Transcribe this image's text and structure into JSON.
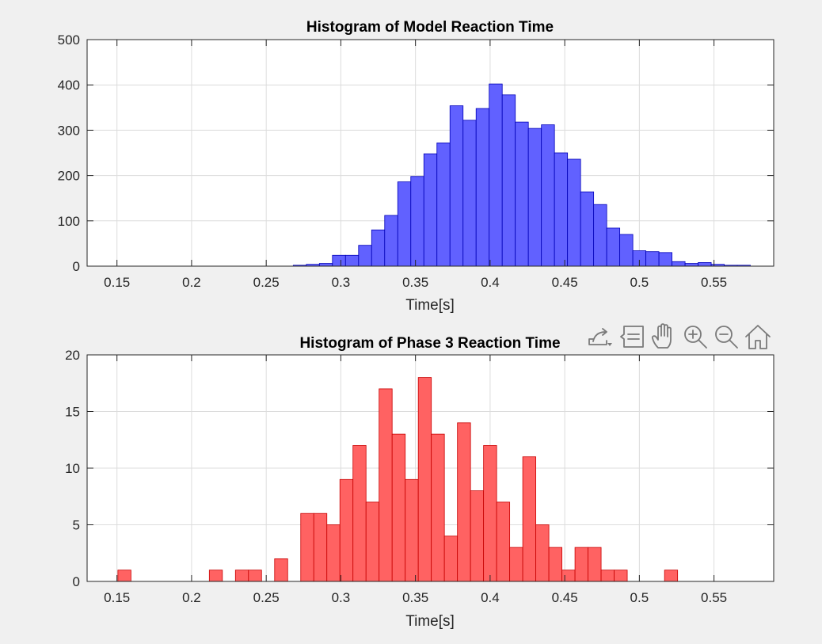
{
  "chart_data": [
    {
      "type": "bar",
      "title": "Histogram of Model Reaction Time",
      "xlabel": "Time[s]",
      "ylabel": "",
      "xlim": [
        0.13,
        0.59
      ],
      "ylim": [
        0,
        500
      ],
      "bin_width": 0.00875,
      "x_ticks": [
        0.15,
        0.2,
        0.25,
        0.3,
        0.35,
        0.4,
        0.45,
        0.5,
        0.55
      ],
      "x_tick_labels": [
        "0.15",
        "0.2",
        "0.25",
        "0.3",
        "0.35",
        "0.4",
        "0.45",
        "0.5",
        "0.55"
      ],
      "y_ticks": [
        0,
        100,
        200,
        300,
        400,
        500
      ],
      "y_tick_labels": [
        "0",
        "100",
        "200",
        "300",
        "400",
        "500"
      ],
      "grid": true,
      "series": [
        {
          "color": "#0000ff",
          "x": [
            0.15,
            0.15875,
            0.1675,
            0.17625,
            0.185,
            0.19375,
            0.2025,
            0.21125,
            0.22,
            0.22875,
            0.2375,
            0.24625,
            0.255,
            0.26375,
            0.2725,
            0.28125,
            0.29,
            0.29875,
            0.3075,
            0.31625,
            0.325,
            0.33375,
            0.3425,
            0.35125,
            0.36,
            0.36875,
            0.3775,
            0.38625,
            0.395,
            0.40375,
            0.4125,
            0.42125,
            0.43,
            0.43875,
            0.4475,
            0.45625,
            0.465,
            0.47375,
            0.4825,
            0.49125,
            0.5,
            0.50875,
            0.5175,
            0.52625,
            0.535,
            0.54375,
            0.5525,
            0.56125,
            0.57
          ],
          "values": [
            0,
            0,
            0,
            0,
            0,
            0,
            0,
            0,
            0,
            0,
            0,
            0,
            0,
            0,
            2,
            4,
            6,
            24,
            24,
            46,
            80,
            112,
            186,
            198,
            248,
            272,
            354,
            322,
            348,
            402,
            378,
            318,
            304,
            312,
            250,
            236,
            164,
            136,
            84,
            70,
            34,
            32,
            30,
            10,
            6,
            8,
            4,
            2,
            2
          ]
        }
      ]
    },
    {
      "type": "bar",
      "title": "Histogram of Phase 3 Reaction Time",
      "xlabel": "Time[s]",
      "ylabel": "",
      "xlim": [
        0.13,
        0.59
      ],
      "ylim": [
        0,
        20
      ],
      "bin_width": 0.00875,
      "x_ticks": [
        0.15,
        0.2,
        0.25,
        0.3,
        0.35,
        0.4,
        0.45,
        0.5,
        0.55
      ],
      "x_tick_labels": [
        "0.15",
        "0.2",
        "0.25",
        "0.3",
        "0.35",
        "0.4",
        "0.45",
        "0.5",
        "0.55"
      ],
      "y_ticks": [
        0,
        5,
        10,
        15,
        20
      ],
      "y_tick_labels": [
        "0",
        "5",
        "10",
        "15",
        "20"
      ],
      "grid": true,
      "series": [
        {
          "color": "#ff0000",
          "x": [
            0.155,
            0.21625,
            0.23375,
            0.2425,
            0.26,
            0.2775,
            0.28625,
            0.295,
            0.30375,
            0.3125,
            0.32125,
            0.33,
            0.33875,
            0.3475,
            0.35625,
            0.365,
            0.37375,
            0.3825,
            0.39125,
            0.4,
            0.40875,
            0.4175,
            0.42625,
            0.435,
            0.44375,
            0.4525,
            0.46125,
            0.47,
            0.47875,
            0.4875,
            0.52125
          ],
          "values": [
            1,
            1,
            1,
            1,
            2,
            6,
            6,
            5,
            9,
            12,
            7,
            17,
            13,
            9,
            18,
            13,
            4,
            14,
            8,
            12,
            7,
            3,
            11,
            5,
            3,
            1,
            3,
            3,
            1,
            1,
            1
          ]
        }
      ]
    }
  ],
  "toolbar": {
    "icons": [
      "export-icon",
      "data-tips-icon",
      "pan-icon",
      "zoom-in-icon",
      "zoom-out-icon",
      "restore-view-icon"
    ]
  }
}
